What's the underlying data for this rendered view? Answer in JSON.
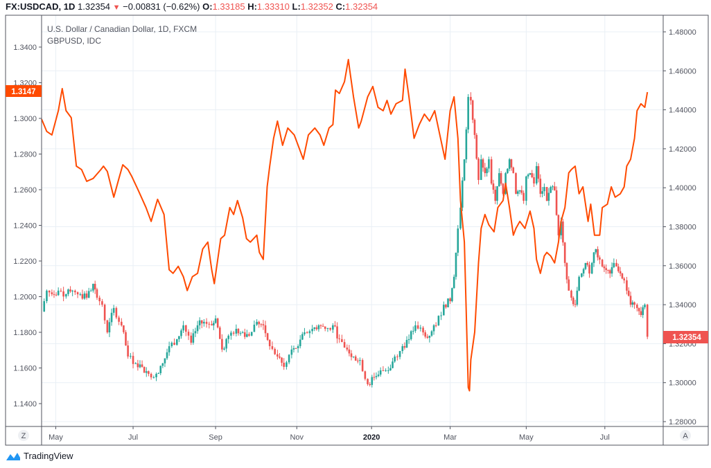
{
  "header": {
    "symbol": "FX:USDCAD, 1D",
    "last": "1.32354",
    "change": "−0.00831 (−0.62%)",
    "o_label": "O:",
    "o": "1.33185",
    "h_label": "H:",
    "h": "1.33310",
    "l_label": "L:",
    "l": "1.32352",
    "c_label": "C:",
    "c": "1.32354"
  },
  "legend": {
    "main": "U.S. Dollar / Canadian Dollar, 1D, FXCM",
    "overlay": "GBPUSD, IDC"
  },
  "buttons": {
    "left": "Z",
    "right": "A"
  },
  "brand": "TradingView",
  "colors": {
    "up": "#26a69a",
    "down": "#ef5350",
    "overlay": "#ff4a00",
    "grid": "#e9eff5"
  },
  "chart_data": {
    "type": "line+candlestick",
    "x_unit": "days since 2019-04-20",
    "x_ticks": [
      {
        "label": "May",
        "d": 11
      },
      {
        "label": "Jul",
        "d": 71
      },
      {
        "label": "Sep",
        "d": 135
      },
      {
        "label": "Nov",
        "d": 198
      },
      {
        "label": "2020",
        "d": 256,
        "bold": true
      },
      {
        "label": "Mar",
        "d": 317
      },
      {
        "label": "May",
        "d": 376
      },
      {
        "label": "Jul",
        "d": 437
      }
    ],
    "left_axis": {
      "series": "GBPUSD",
      "range": [
        1.13,
        1.36
      ],
      "ticks": [
        "1.1400",
        "1.1600",
        "1.1800",
        "1.2000",
        "1.2200",
        "1.2400",
        "1.2600",
        "1.2800",
        "1.3000",
        "1.3200",
        "1.3400"
      ],
      "last_label": "1.3147"
    },
    "right_axis": {
      "series": "USDCAD",
      "range": [
        1.275,
        1.49
      ],
      "ticks": [
        "1.28000",
        "1.30000",
        "1.32000",
        "1.34000",
        "1.36000",
        "1.38000",
        "1.40000",
        "1.42000",
        "1.44000",
        "1.46000",
        "1.48000"
      ],
      "last_label": "1.32354"
    },
    "overlay_series": {
      "name": "GBPUSD",
      "points": [
        [
          0,
          1.2996
        ],
        [
          4,
          1.2927
        ],
        [
          8,
          1.2907
        ],
        [
          13,
          1.3043
        ],
        [
          16,
          1.3167
        ],
        [
          19,
          1.3043
        ],
        [
          23,
          1.3004
        ],
        [
          27,
          1.2732
        ],
        [
          31,
          1.2713
        ],
        [
          35,
          1.2647
        ],
        [
          40,
          1.2663
        ],
        [
          46,
          1.2713
        ],
        [
          48,
          1.2732
        ],
        [
          51,
          1.2702
        ],
        [
          56,
          1.2558
        ],
        [
          60,
          1.2663
        ],
        [
          63,
          1.274
        ],
        [
          67,
          1.2713
        ],
        [
          70,
          1.2674
        ],
        [
          75,
          1.2597
        ],
        [
          81,
          1.25
        ],
        [
          85,
          1.2422
        ],
        [
          90,
          1.2546
        ],
        [
          95,
          1.2461
        ],
        [
          97,
          1.2306
        ],
        [
          99,
          1.2151
        ],
        [
          102,
          1.2131
        ],
        [
          106,
          1.217
        ],
        [
          110,
          1.2112
        ],
        [
          113,
          1.2034
        ],
        [
          117,
          1.2112
        ],
        [
          121,
          1.2131
        ],
        [
          125,
          1.2267
        ],
        [
          129,
          1.2306
        ],
        [
          132,
          1.2151
        ],
        [
          134,
          1.2073
        ],
        [
          139,
          1.2325
        ],
        [
          142,
          1.2345
        ],
        [
          146,
          1.25
        ],
        [
          149,
          1.2461
        ],
        [
          152,
          1.2539
        ],
        [
          156,
          1.2442
        ],
        [
          159,
          1.2325
        ],
        [
          162,
          1.2306
        ],
        [
          167,
          1.2345
        ],
        [
          169,
          1.2248
        ],
        [
          172,
          1.2209
        ],
        [
          175,
          1.2616
        ],
        [
          177,
          1.2732
        ],
        [
          180,
          1.2888
        ],
        [
          183,
          1.2985
        ],
        [
          187,
          1.2849
        ],
        [
          191,
          1.2946
        ],
        [
          196,
          1.2907
        ],
        [
          200,
          1.283
        ],
        [
          203,
          1.2771
        ],
        [
          207,
          1.2907
        ],
        [
          212,
          1.2946
        ],
        [
          216,
          1.2907
        ],
        [
          219,
          1.2849
        ],
        [
          223,
          1.2946
        ],
        [
          226,
          1.2965
        ],
        [
          228,
          1.3159
        ],
        [
          231,
          1.314
        ],
        [
          235,
          1.3206
        ],
        [
          238,
          1.333
        ],
        [
          239,
          1.3276
        ],
        [
          242,
          1.3121
        ],
        [
          246,
          1.2946
        ],
        [
          248,
          1.2985
        ],
        [
          253,
          1.3121
        ],
        [
          257,
          1.3179
        ],
        [
          261,
          1.3062
        ],
        [
          265,
          1.3043
        ],
        [
          268,
          1.3101
        ],
        [
          271,
          1.3024
        ],
        [
          275,
          1.3082
        ],
        [
          280,
          1.3101
        ],
        [
          282,
          1.3276
        ],
        [
          285,
          1.3121
        ],
        [
          289,
          1.2888
        ],
        [
          293,
          1.2965
        ],
        [
          297,
          1.3024
        ],
        [
          301,
          1.2985
        ],
        [
          305,
          1.3043
        ],
        [
          309,
          1.2907
        ],
        [
          313,
          1.2771
        ],
        [
          317,
          1.3043
        ],
        [
          320,
          1.3121
        ],
        [
          323,
          1.2888
        ],
        [
          325,
          1.2539
        ],
        [
          328,
          1.2306
        ],
        [
          331,
          1.1491
        ],
        [
          332,
          1.1472
        ],
        [
          333,
          1.1646
        ],
        [
          336,
          1.1801
        ],
        [
          339,
          1.2189
        ],
        [
          341,
          1.2383
        ],
        [
          344,
          1.2461
        ],
        [
          347,
          1.2403
        ],
        [
          351,
          1.2364
        ],
        [
          354,
          1.25
        ],
        [
          358,
          1.2539
        ],
        [
          360,
          1.2636
        ],
        [
          363,
          1.25
        ],
        [
          366,
          1.2345
        ],
        [
          368,
          1.2383
        ],
        [
          371,
          1.2422
        ],
        [
          375,
          1.2383
        ],
        [
          379,
          1.248
        ],
        [
          382,
          1.2383
        ],
        [
          384,
          1.2209
        ],
        [
          387,
          1.2131
        ],
        [
          390,
          1.2228
        ],
        [
          392,
          1.2248
        ],
        [
          395,
          1.2228
        ],
        [
          398,
          1.2189
        ],
        [
          401,
          1.2306
        ],
        [
          403,
          1.2422
        ],
        [
          406,
          1.25
        ],
        [
          409,
          1.2694
        ],
        [
          411,
          1.2713
        ],
        [
          414,
          1.2732
        ],
        [
          417,
          1.2577
        ],
        [
          420,
          1.2616
        ],
        [
          424,
          1.2422
        ],
        [
          426,
          1.2519
        ],
        [
          429,
          1.2345
        ],
        [
          433,
          1.2345
        ],
        [
          435,
          1.25
        ],
        [
          439,
          1.2519
        ],
        [
          442,
          1.2616
        ],
        [
          445,
          1.2558
        ],
        [
          449,
          1.2577
        ],
        [
          452,
          1.2616
        ],
        [
          454,
          1.2732
        ],
        [
          457,
          1.2771
        ],
        [
          460,
          1.2888
        ],
        [
          462,
          1.3043
        ],
        [
          465,
          1.3082
        ],
        [
          468,
          1.3062
        ],
        [
          470,
          1.3147
        ]
      ]
    },
    "candle_series": {
      "name": "USDCAD",
      "closes": [
        [
          0,
          1.3365
        ],
        [
          4,
          1.3472
        ],
        [
          8,
          1.3454
        ],
        [
          13,
          1.3472
        ],
        [
          19,
          1.3454
        ],
        [
          24,
          1.3472
        ],
        [
          30,
          1.3454
        ],
        [
          35,
          1.3436
        ],
        [
          40,
          1.3507
        ],
        [
          43,
          1.3436
        ],
        [
          47,
          1.34
        ],
        [
          51,
          1.3258
        ],
        [
          56,
          1.3383
        ],
        [
          62,
          1.3294
        ],
        [
          67,
          1.3134
        ],
        [
          73,
          1.3099
        ],
        [
          78,
          1.3081
        ],
        [
          83,
          1.3045
        ],
        [
          89,
          1.3045
        ],
        [
          94,
          1.3099
        ],
        [
          99,
          1.3187
        ],
        [
          105,
          1.3223
        ],
        [
          110,
          1.3294
        ],
        [
          116,
          1.3205
        ],
        [
          121,
          1.3294
        ],
        [
          126,
          1.3312
        ],
        [
          132,
          1.3294
        ],
        [
          135,
          1.3329
        ],
        [
          140,
          1.317
        ],
        [
          145,
          1.3241
        ],
        [
          151,
          1.3276
        ],
        [
          156,
          1.3258
        ],
        [
          161,
          1.3241
        ],
        [
          167,
          1.3312
        ],
        [
          172,
          1.3294
        ],
        [
          177,
          1.3187
        ],
        [
          183,
          1.3134
        ],
        [
          188,
          1.3081
        ],
        [
          194,
          1.317
        ],
        [
          199,
          1.3187
        ],
        [
          204,
          1.3258
        ],
        [
          210,
          1.3276
        ],
        [
          215,
          1.3294
        ],
        [
          220,
          1.3276
        ],
        [
          226,
          1.3294
        ],
        [
          231,
          1.3223
        ],
        [
          237,
          1.317
        ],
        [
          242,
          1.3134
        ],
        [
          247,
          1.3116
        ],
        [
          253,
          1.2992
        ],
        [
          258,
          1.3028
        ],
        [
          263,
          1.3063
        ],
        [
          269,
          1.3063
        ],
        [
          274,
          1.3134
        ],
        [
          280,
          1.3187
        ],
        [
          285,
          1.3223
        ],
        [
          290,
          1.3294
        ],
        [
          296,
          1.3258
        ],
        [
          301,
          1.3241
        ],
        [
          306,
          1.3294
        ],
        [
          312,
          1.34
        ],
        [
          317,
          1.3418
        ],
        [
          320,
          1.3543
        ],
        [
          323,
          1.3791
        ],
        [
          325,
          1.3898
        ],
        [
          328,
          1.4146
        ],
        [
          331,
          1.4466
        ],
        [
          333,
          1.4448
        ],
        [
          336,
          1.4271
        ],
        [
          339,
          1.404
        ],
        [
          341,
          1.4146
        ],
        [
          344,
          1.4075
        ],
        [
          347,
          1.4146
        ],
        [
          349,
          1.4022
        ],
        [
          352,
          1.3933
        ],
        [
          355,
          1.4075
        ],
        [
          358,
          1.3969
        ],
        [
          360,
          1.4075
        ],
        [
          363,
          1.4146
        ],
        [
          366,
          1.4075
        ],
        [
          368,
          1.3969
        ],
        [
          371,
          1.3987
        ],
        [
          374,
          1.3933
        ],
        [
          376,
          1.4058
        ],
        [
          379,
          1.4075
        ],
        [
          382,
          1.4022
        ],
        [
          384,
          1.4111
        ],
        [
          387,
          1.3969
        ],
        [
          390,
          1.4004
        ],
        [
          392,
          1.3933
        ],
        [
          395,
          1.4004
        ],
        [
          398,
          1.3987
        ],
        [
          401,
          1.3756
        ],
        [
          403,
          1.3827
        ],
        [
          406,
          1.3614
        ],
        [
          409,
          1.3472
        ],
        [
          411,
          1.3436
        ],
        [
          414,
          1.34
        ],
        [
          417,
          1.3543
        ],
        [
          419,
          1.356
        ],
        [
          422,
          1.3614
        ],
        [
          425,
          1.356
        ],
        [
          427,
          1.3614
        ],
        [
          430,
          1.3685
        ],
        [
          433,
          1.3631
        ],
        [
          435,
          1.3596
        ],
        [
          438,
          1.3578
        ],
        [
          441,
          1.356
        ],
        [
          444,
          1.3614
        ],
        [
          446,
          1.3596
        ],
        [
          449,
          1.356
        ],
        [
          452,
          1.3525
        ],
        [
          454,
          1.3472
        ],
        [
          457,
          1.34
        ],
        [
          460,
          1.34
        ],
        [
          462,
          1.3383
        ],
        [
          465,
          1.3347
        ],
        [
          468,
          1.34
        ],
        [
          470,
          1.32354
        ]
      ]
    }
  }
}
